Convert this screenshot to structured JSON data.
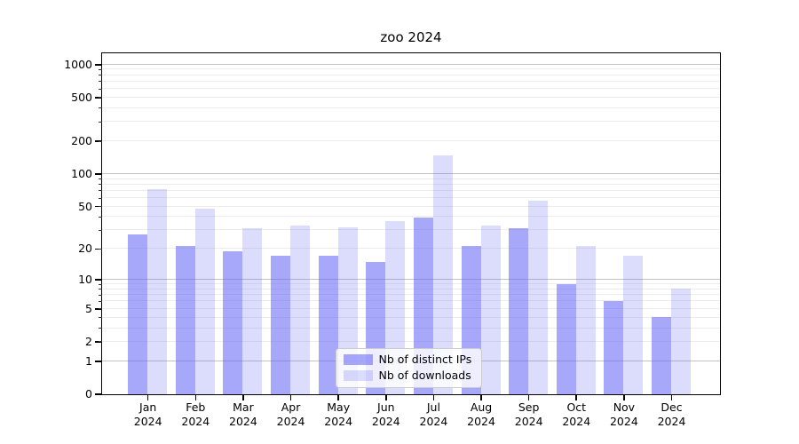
{
  "page": {
    "title": "zoo 2024"
  },
  "chart_data": {
    "type": "bar",
    "title": "zoo 2024",
    "categories": [
      "Jan 2024",
      "Feb 2024",
      "Mar 2024",
      "Apr 2024",
      "May 2024",
      "Jun 2024",
      "Jul 2024",
      "Aug 2024",
      "Sep 2024",
      "Oct 2024",
      "Nov 2024",
      "Dec 2024"
    ],
    "series": [
      {
        "name": "Nb of distinct IPs",
        "color_hex": "#a7a7f8",
        "fill_rgba": "rgba(96,96,247,0.55)",
        "values": [
          27,
          21,
          19,
          17,
          17,
          15,
          39,
          21,
          31,
          9,
          6,
          4
        ]
      },
      {
        "name": "Nb of downloads",
        "color_hex": "#dcdcfb",
        "fill_rgba": "rgba(96,96,247,0.22)",
        "values": [
          72,
          47,
          31,
          33,
          32,
          36,
          148,
          33,
          56,
          21,
          17,
          8
        ]
      }
    ],
    "y_axis": {
      "scale": "symlog",
      "tick_labels": [
        0,
        1,
        2,
        5,
        10,
        20,
        50,
        100,
        200,
        500,
        1000
      ],
      "major_gridlines": [
        1,
        10,
        100,
        1000
      ],
      "top_value": 1270
    },
    "x_axis": {
      "tick_label_line2": "2024"
    },
    "legend": {
      "position": "inside-bottom-center"
    },
    "grid": {
      "major_color": "#c3c3c3",
      "minor_color": "#ececec"
    },
    "ylim": [
      0,
      1270
    ]
  }
}
